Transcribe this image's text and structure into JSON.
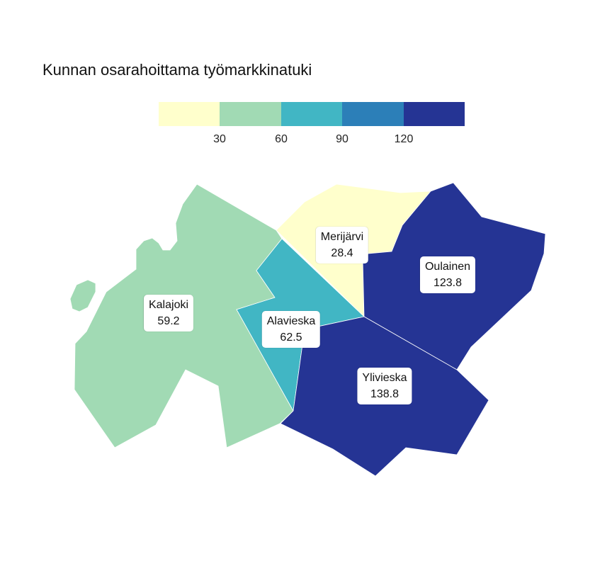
{
  "title": "Kunnan osarahoittama työmarkkinatuki",
  "legend": {
    "colors": [
      "#ffffcc",
      "#a1dab4",
      "#41b6c4",
      "#2c7fb8",
      "#253494"
    ],
    "ticks": [
      "30",
      "60",
      "90",
      "120"
    ]
  },
  "chart_data": {
    "type": "choropleth",
    "title": "Kunnan osarahoittama työmarkkinatuki",
    "breaks": [
      30,
      60,
      90,
      120
    ],
    "regions": [
      {
        "name": "Kalajoki",
        "value": "59.2"
      },
      {
        "name": "Merijärvi",
        "value": "28.4"
      },
      {
        "name": "Oulainen",
        "value": "123.8"
      },
      {
        "name": "Alavieska",
        "value": "62.5"
      },
      {
        "name": "Ylivieska",
        "value": "138.8"
      }
    ]
  }
}
